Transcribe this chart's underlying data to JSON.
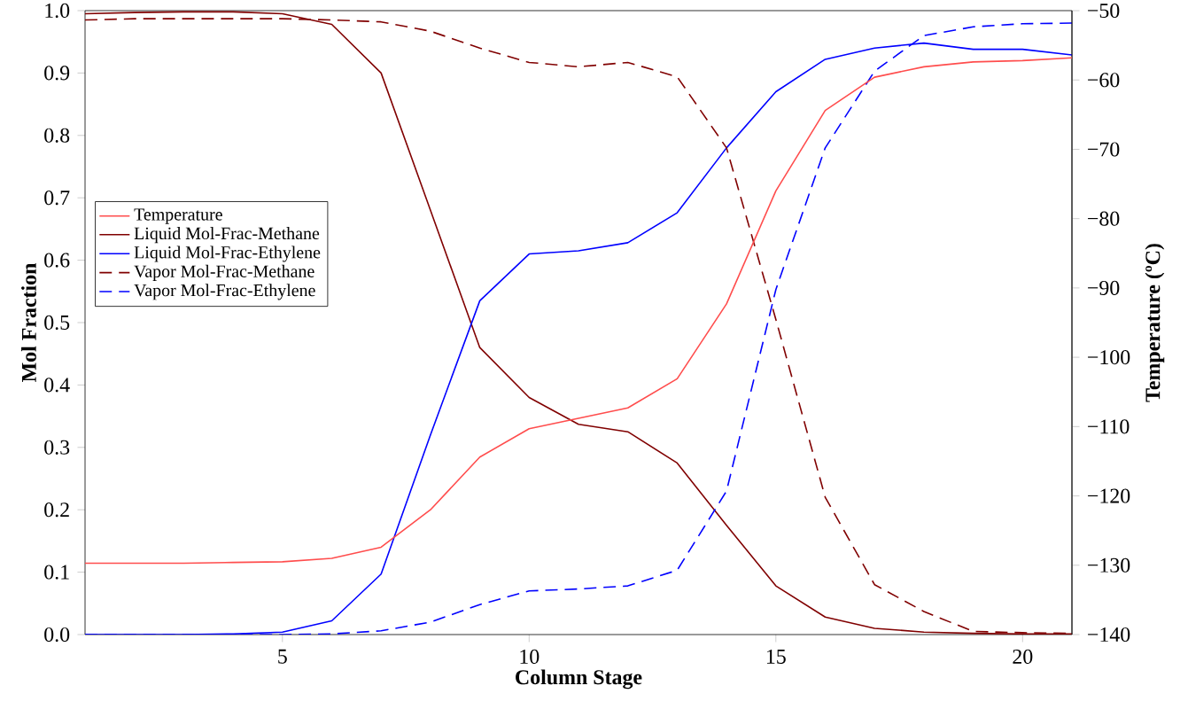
{
  "chart_data": {
    "type": "line",
    "xlabel": "Column Stage",
    "ylabel": "Mol Fraction",
    "y2label": "Temperature (ºC)",
    "x": [
      1,
      2,
      3,
      4,
      5,
      6,
      7,
      8,
      9,
      10,
      11,
      12,
      13,
      14,
      15,
      16,
      17,
      18,
      19,
      20,
      21
    ],
    "xlim": [
      1,
      21
    ],
    "xticks": [
      5,
      10,
      15,
      20
    ],
    "ylim": [
      0,
      1
    ],
    "yticks": [
      {
        "value": 0,
        "label": "0.0"
      },
      0.1,
      0.2,
      0.3,
      0.4,
      0.5,
      0.6,
      0.7,
      0.8,
      0.9,
      {
        "value": 1,
        "label": "1.0"
      }
    ],
    "y2lim": [
      -140,
      -50
    ],
    "y2ticks": [
      {
        "value": -140,
        "label": "−140"
      },
      {
        "value": -130,
        "label": "−130"
      },
      {
        "value": -120,
        "label": "−120"
      },
      {
        "value": -110,
        "label": "−110"
      },
      {
        "value": -100,
        "label": "−100"
      },
      {
        "value": -90,
        "label": "−90"
      },
      {
        "value": -80,
        "label": "−80"
      },
      {
        "value": -70,
        "label": "−70"
      },
      {
        "value": -60,
        "label": "−60"
      },
      {
        "value": -50,
        "label": "−50"
      }
    ],
    "legend": "left",
    "series": [
      {
        "name": "Temperature",
        "color": "#ff4d4d",
        "axis": "y2",
        "line_style": "solid",
        "values": [
          -129.7,
          -129.7,
          -129.7,
          -129.6,
          -129.5,
          -129,
          -127.4,
          -122,
          -114.4,
          -110.3,
          -108.8,
          -107.3,
          -103.1,
          -92.3,
          -76,
          -64.4,
          -59.6,
          -58.1,
          -57.4,
          -57.2,
          -56.8
        ]
      },
      {
        "name": "Liquid Mol-Frac-Methane",
        "color": "#800000",
        "line_style": "solid",
        "values": [
          0.995,
          0.997,
          0.998,
          0.998,
          0.995,
          0.978,
          0.9,
          0.68,
          0.46,
          0.38,
          0.337,
          0.325,
          0.275,
          0.175,
          0.078,
          0.028,
          0.01,
          0.004,
          0.002,
          0.001,
          0.001
        ]
      },
      {
        "name": "Liquid Mol-Frac-Ethylene",
        "color": "#0000ff",
        "line_style": "solid",
        "values": [
          0,
          0,
          0,
          0.001,
          0.004,
          0.022,
          0.097,
          0.32,
          0.535,
          0.61,
          0.615,
          0.628,
          0.676,
          0.78,
          0.87,
          0.922,
          0.94,
          0.948,
          0.938,
          0.938,
          0.929
        ]
      },
      {
        "name": "Vapor Mol-Frac-Methane",
        "color": "#800000",
        "line_style": "dashed",
        "values": [
          0.985,
          0.987,
          0.987,
          0.987,
          0.987,
          0.985,
          0.982,
          0.967,
          0.94,
          0.917,
          0.91,
          0.917,
          0.894,
          0.78,
          0.505,
          0.22,
          0.08,
          0.037,
          0.005,
          0.003,
          0.002
        ]
      },
      {
        "name": "Vapor Mol-Frac-Ethylene",
        "color": "#0000ff",
        "line_style": "dashed",
        "values": [
          0,
          0,
          0,
          0,
          0,
          0.001,
          0.006,
          0.02,
          0.048,
          0.07,
          0.073,
          0.078,
          0.103,
          0.23,
          0.553,
          0.78,
          0.903,
          0.96,
          0.974,
          0.979,
          0.98
        ]
      }
    ]
  }
}
